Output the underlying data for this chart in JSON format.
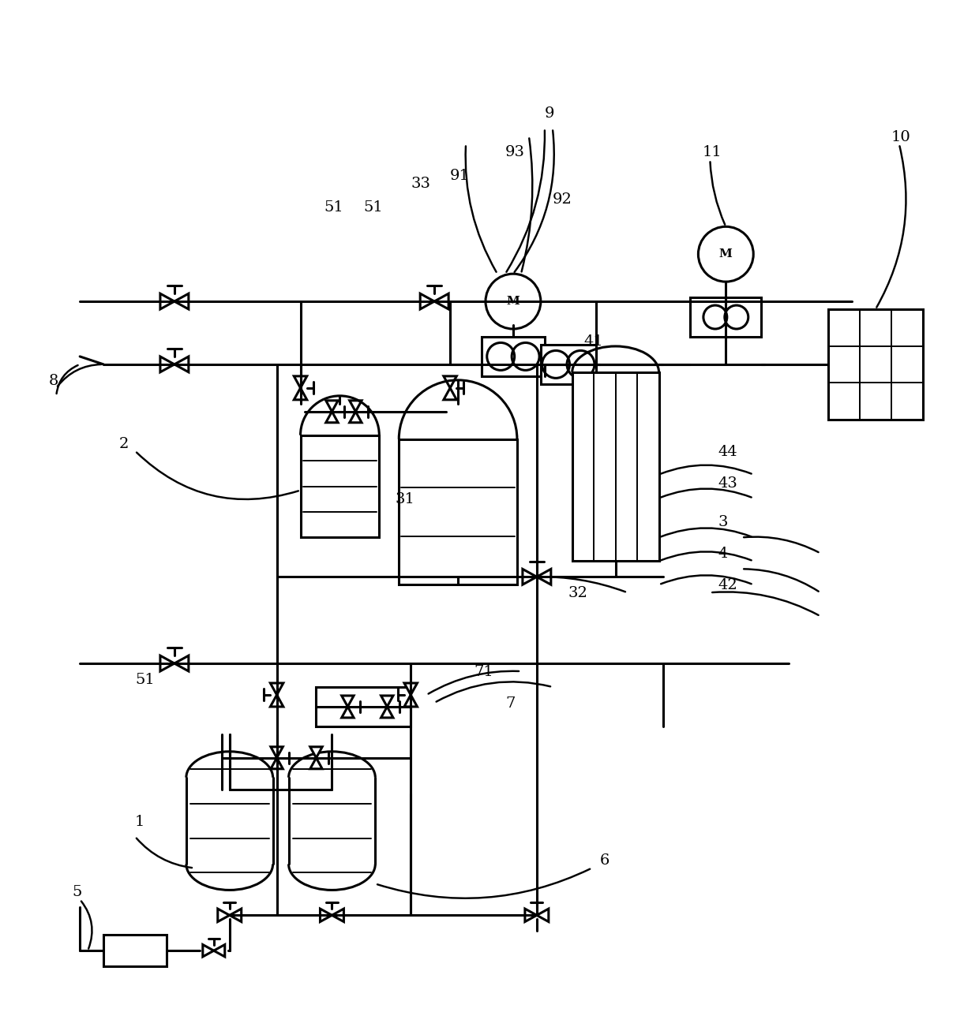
{
  "bg_color": "#ffffff",
  "lc": "#000000",
  "lw": 2.2,
  "lw_thin": 1.4,
  "fig_w": 12.4,
  "fig_h": 12.83,
  "xmax": 124,
  "ymax": 128,
  "label_fs": 14
}
